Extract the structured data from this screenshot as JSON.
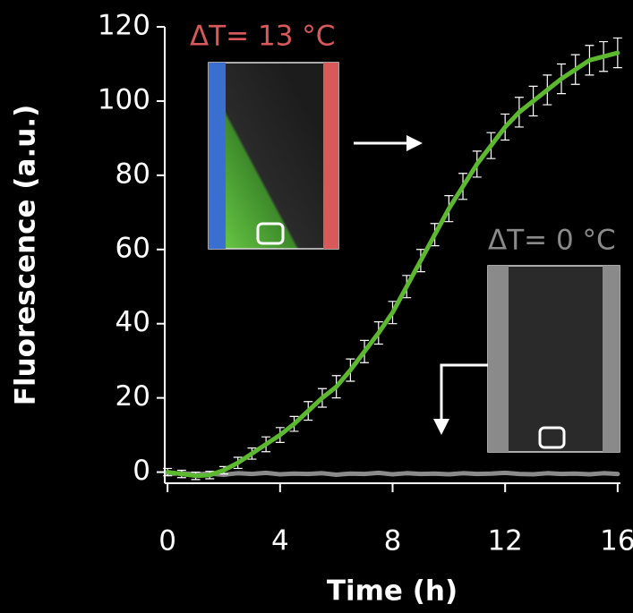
{
  "chart_data": {
    "type": "line",
    "xlabel": "Time (h)",
    "ylabel": "Fluorescence (a.u.)",
    "x": [
      0,
      0.5,
      1,
      1.5,
      2,
      2.5,
      3,
      3.5,
      4,
      4.5,
      5,
      5.5,
      6,
      6.5,
      7,
      7.5,
      8,
      8.5,
      9,
      9.5,
      10,
      10.5,
      11,
      11.5,
      12,
      12.5,
      13,
      13.5,
      14,
      14.5,
      15,
      15.5,
      16
    ],
    "series": [
      {
        "color": "#5cb82e",
        "values": [
          0,
          -0.5,
          -1,
          -0.8,
          0.5,
          2.5,
          5,
          7.5,
          10,
          13,
          16.5,
          20,
          23,
          27.5,
          32.5,
          37.5,
          43,
          50,
          57,
          64,
          71,
          77,
          83,
          88,
          93,
          97,
          100,
          103,
          106,
          108.5,
          111,
          112,
          113
        ],
        "errors": [
          1,
          1,
          1,
          1,
          1,
          1.5,
          1.5,
          2,
          2,
          2,
          2.5,
          2.5,
          3,
          3,
          3,
          3,
          3,
          3,
          3,
          3,
          3.5,
          3.5,
          3.5,
          3.5,
          3.5,
          4,
          4,
          4,
          4,
          4,
          4,
          4,
          4
        ]
      },
      {
        "color": "#8a8a8a",
        "values": [
          -0.5,
          -0.3,
          -0.6,
          -0.4,
          -0.7,
          -0.3,
          -0.5,
          -0.2,
          -0.6,
          -0.4,
          -0.5,
          -0.3,
          -0.7,
          -0.4,
          -0.5,
          -0.2,
          -0.6,
          -0.3,
          -0.5,
          -0.4,
          -0.6,
          -0.3,
          -0.5,
          -0.4,
          -0.2,
          -0.5,
          -0.6,
          -0.3,
          -0.5,
          -0.4,
          -0.6,
          -0.3,
          -0.5
        ]
      }
    ],
    "xlim": [
      -0.1,
      16.1
    ],
    "ylim": [
      -3,
      120
    ],
    "xticks": [
      0,
      4,
      8,
      12,
      16
    ],
    "yticks": [
      0,
      20,
      40,
      60,
      80,
      100,
      120
    ],
    "annotations": [
      "ΔT= 13 °C",
      "ΔT= 0 °C"
    ]
  }
}
